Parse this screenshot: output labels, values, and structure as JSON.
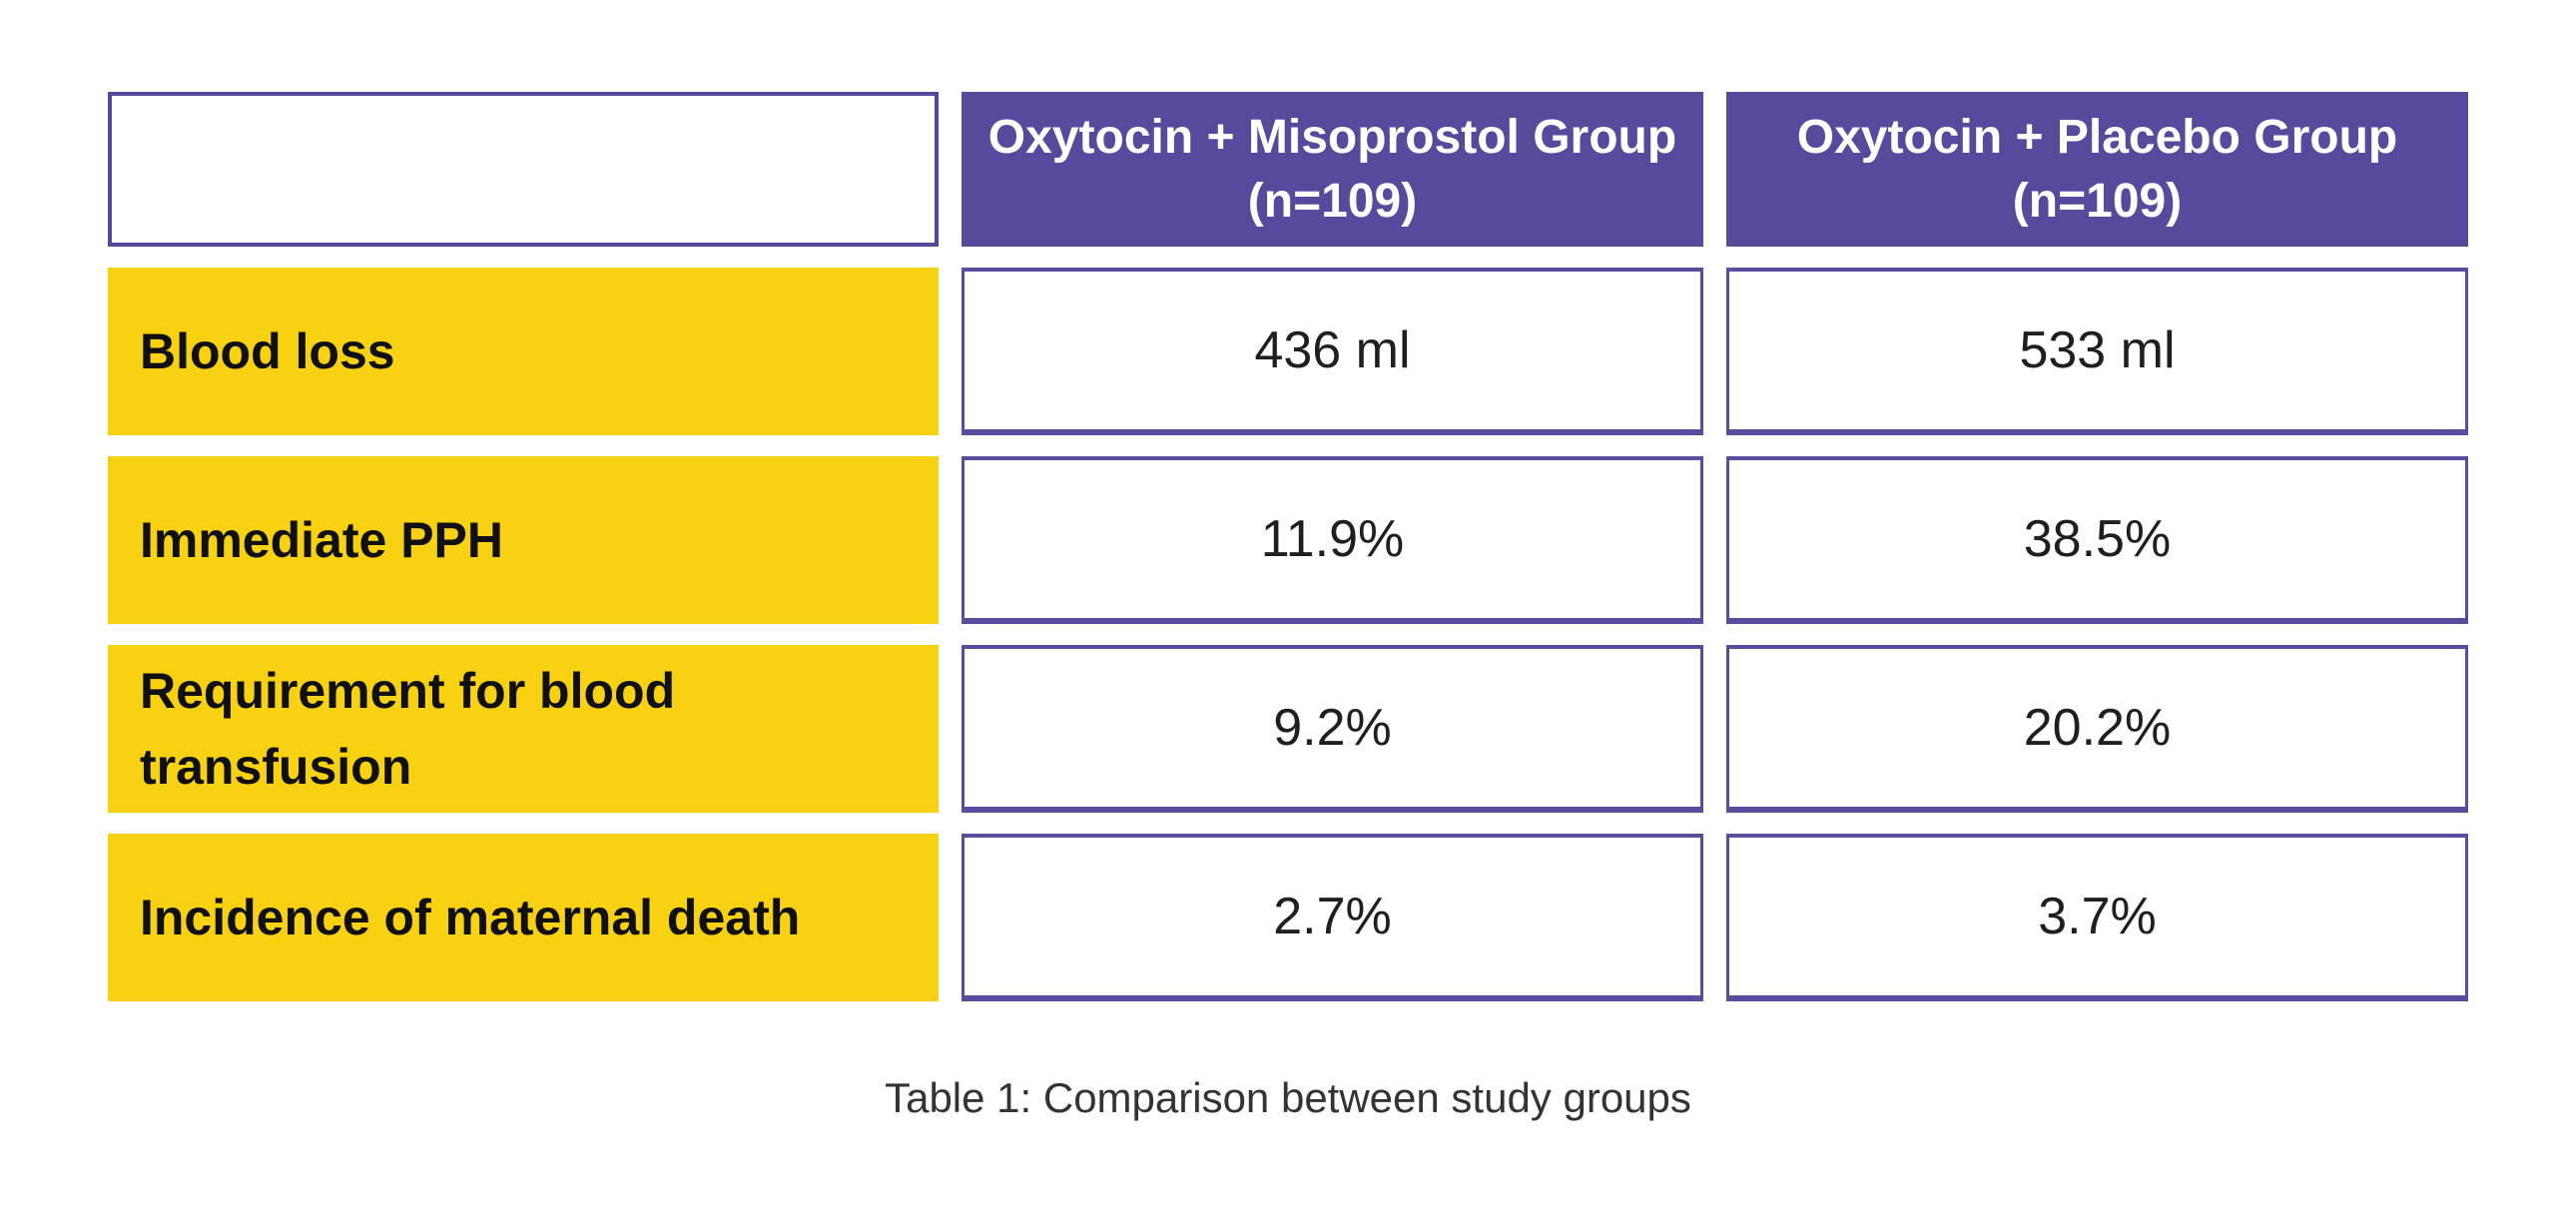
{
  "chart_data": {
    "type": "table",
    "title": "Table 1: Comparison between study groups",
    "columns": [
      "",
      "Oxytocin + Misoprostol Group (n=109)",
      "Oxytocin + Placebo Group (n=109)"
    ],
    "rows": [
      [
        "Blood loss",
        "436 ml",
        "533 ml"
      ],
      [
        "Immediate PPH",
        "11.9%",
        "38.5%"
      ],
      [
        "Requirement for blood transfusion",
        "9.2%",
        "20.2%"
      ],
      [
        "Incidence of maternal death",
        "2.7%",
        "3.7%"
      ]
    ]
  },
  "table": {
    "header": {
      "misoprostol": {
        "title": "Oxytocin + Misoprostol Group",
        "n": "(n=109)"
      },
      "placebo": {
        "title": "Oxytocin + Placebo Group",
        "n": "(n=109)"
      }
    },
    "rows": [
      {
        "label": "Blood loss",
        "misoprostol": "436 ml",
        "placebo": "533 ml"
      },
      {
        "label": "Immediate PPH",
        "misoprostol": "11.9%",
        "placebo": "38.5%"
      },
      {
        "label": "Requirement for blood transfusion",
        "misoprostol": "9.2%",
        "placebo": "20.2%"
      },
      {
        "label": "Incidence of maternal death",
        "misoprostol": "2.7%",
        "placebo": "3.7%"
      }
    ]
  },
  "caption": "Table 1: Comparison between study groups",
  "colors": {
    "header_purple": "#57499C",
    "cell_border_purple": "#5A4DA0",
    "label_yellow": "#F7D112",
    "header_text": "#FFFFFF",
    "label_text": "#101010",
    "value_text": "#1F1F1F",
    "caption_text": "#333333",
    "background": "#FFFFFF"
  }
}
